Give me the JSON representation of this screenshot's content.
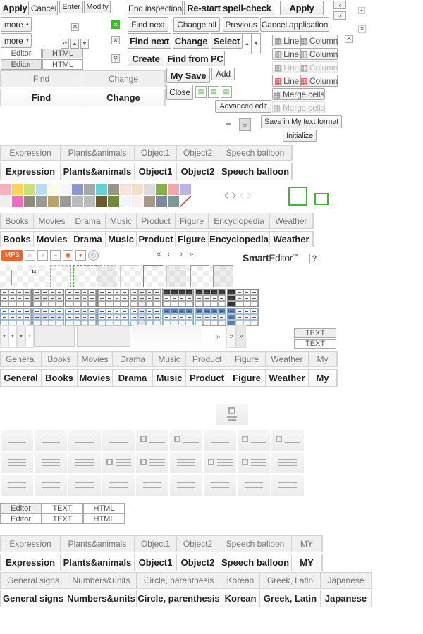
{
  "buttons": {
    "apply": "Apply",
    "cancel": "Cancel",
    "enter": "Enter",
    "modify": "Modify",
    "end_inspection": "End inspection",
    "restart_spell": "Re-start spell-check",
    "apply2": "Apply",
    "more_up": "more",
    "more_down": "more",
    "find_next": "Find next",
    "change_all": "Change all",
    "previous": "Previous",
    "cancel_application": "Cancel application",
    "find_next_bold": "Find next",
    "change": "Change",
    "select": "Select",
    "create": "Create",
    "find_from_pc": "Find from PC",
    "my_save": "My Save",
    "add": "Add",
    "close": "Close",
    "advanced_edit": "Advanced edit",
    "save_my_text": "Save in My text format",
    "initialize": "Initialize",
    "merge_cells": "Merge cells",
    "merge_cells_disabled": "Merge cells"
  },
  "table_edit": [
    {
      "a": "Line",
      "b": "Column"
    },
    {
      "a": "Line",
      "b": "Column"
    },
    {
      "a": "Line",
      "b": "Column"
    },
    {
      "a": "Line",
      "b": "Column"
    }
  ],
  "mode_toggle": {
    "editor": "Editor",
    "html": "HTML",
    "text": "TEXT"
  },
  "find_tabs": [
    "Find",
    "Change"
  ],
  "expression_tabs": [
    "Expression",
    "Plants&animals",
    "Object1",
    "Object2",
    "Speech balloon"
  ],
  "category_tabs": [
    "Books",
    "Movies",
    "Drama",
    "Music",
    "Product",
    "Figure",
    "Encyclopedia",
    "Weather"
  ],
  "media": {
    "mp3": "MP3"
  },
  "pagination": [
    "«",
    "‹",
    "›",
    "»"
  ],
  "brand": {
    "name_bold": "Smart",
    "name_rest": "Editor",
    "tm": "™",
    "help": "?"
  },
  "more_arrows": [
    "»",
    "»",
    "»"
  ],
  "text_buttons": [
    "TEXT",
    "TEXT"
  ],
  "general_tabs": [
    "General",
    "Books",
    "Movies",
    "Drama",
    "Music",
    "Product",
    "Figure",
    "Weather",
    "My"
  ],
  "expression_tabs_my": [
    "Expression",
    "Plants&animals",
    "Object1",
    "Object2",
    "Speech balloon",
    "MY"
  ],
  "symbol_tabs": [
    "General signs",
    "Numbers&units",
    "Circle, parenthesis",
    "Korean",
    "Greek, Latin",
    "Japanese"
  ],
  "colors": {
    "accent_green": "#3cb828",
    "mp3_orange": "#f0642a",
    "close_red": "#e33"
  },
  "pattern_swatches": [
    "#f7b3bd",
    "#fdd35a",
    "#c8e07e",
    "#b8dcf6",
    "#fffbe8",
    "#f5f7fb",
    "#8c96d4",
    "#a8a8a8",
    "#5ed4d8",
    "#9a9484",
    "#fde0e0",
    "#f3e2c4",
    "#dcdcdc",
    "#88b048",
    "#eeaaaa",
    "#bdb3e6",
    "#f0f0f0",
    "#f06cc0",
    "#8f8a7e",
    "#9a9a98",
    "#b8a46a",
    "#9a9a9a",
    "#bbbbbb",
    "#bbbbbb",
    "#6b5a2a",
    "#6f8a3a",
    "#eef6fb",
    "#fbeeee",
    "#a89888",
    "#7c88a4",
    "#7c9898",
    "#ffffff"
  ]
}
